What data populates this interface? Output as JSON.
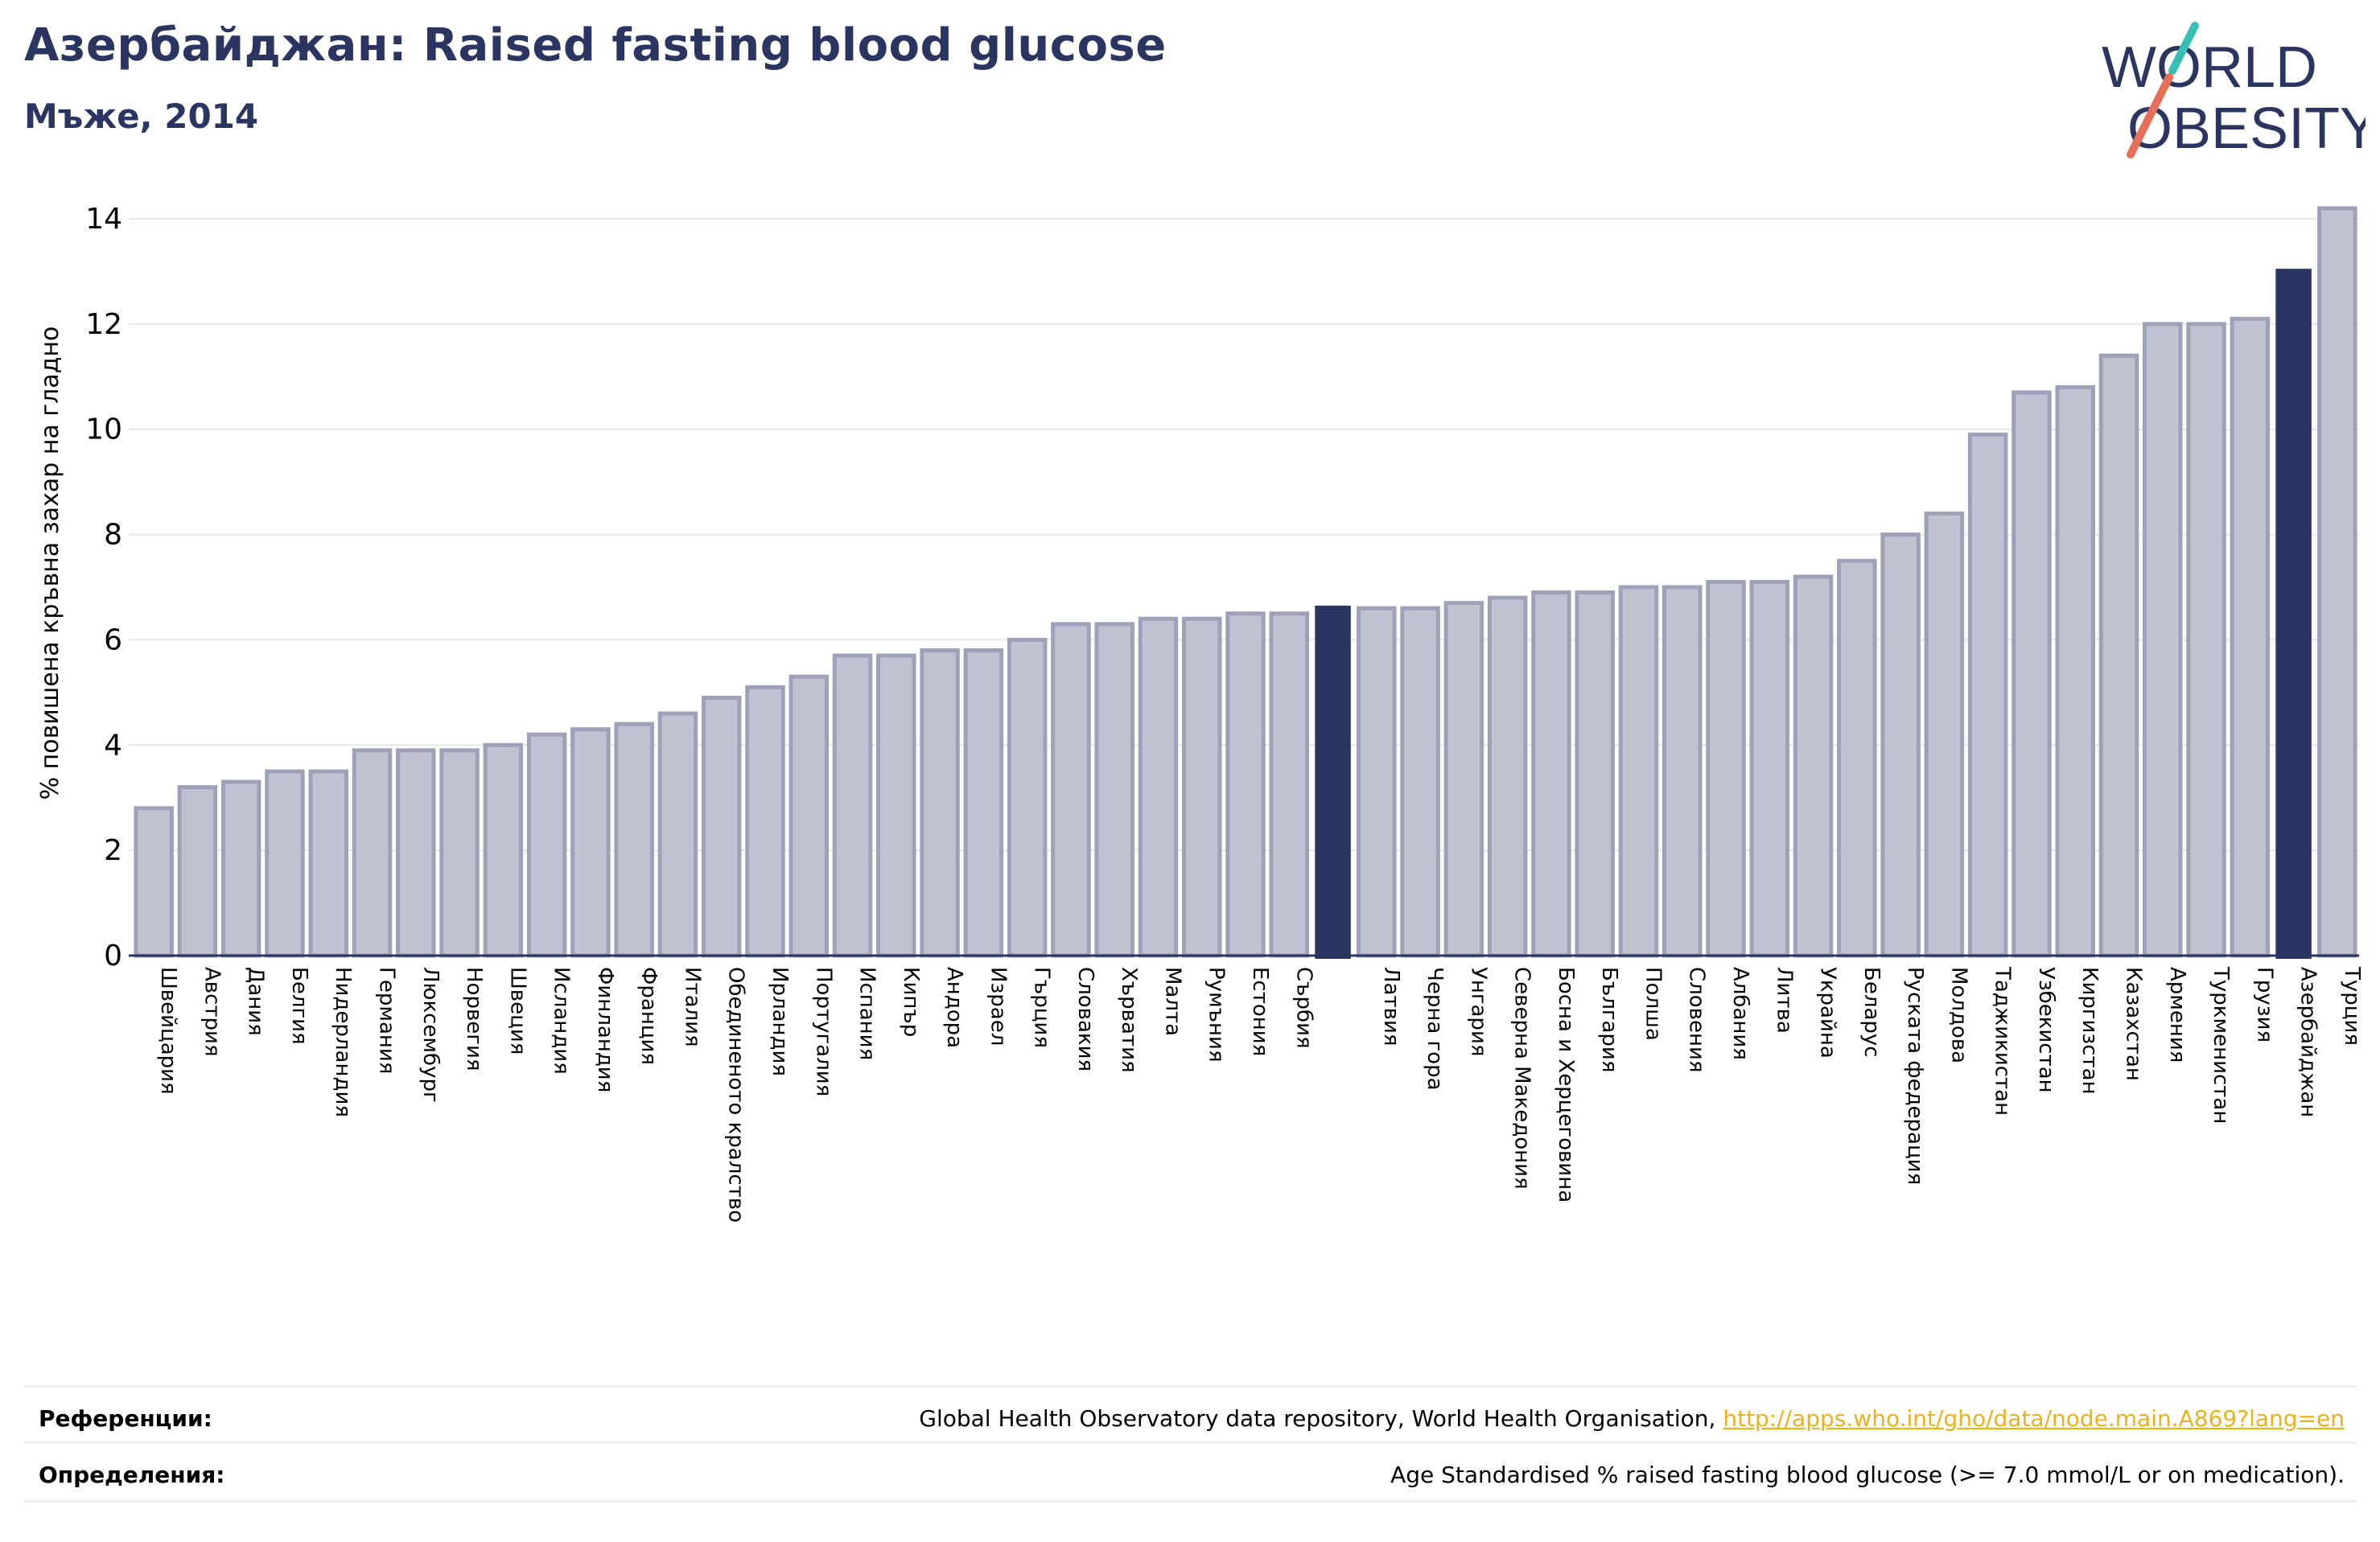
{
  "header": {
    "title": "Азербайджан: Raised fasting blood glucose",
    "subtitle": "Мъже, 2014"
  },
  "logo": {
    "line1": "WORLD",
    "line2": "OBESITY",
    "color": "#2a3562",
    "accent_teal": "#3bbfb5",
    "accent_coral": "#e8705a"
  },
  "colors": {
    "bar_fill": "#bfc2d1",
    "bar_stroke": "#9ea2b8",
    "highlight": "#2a3562",
    "grid": "#e6e6e6",
    "axis": "#2a3562"
  },
  "chart_data": {
    "type": "bar",
    "ylabel": "% повишена кръвна захар на гладно",
    "ylim": [
      0,
      14.5
    ],
    "yticks": [
      0,
      2,
      4,
      6,
      8,
      10,
      12,
      14
    ],
    "grid": true,
    "highlight_category": "Азербайджан",
    "categories": [
      "Швейцария",
      "Австрия",
      "Дания",
      "Белгия",
      "Нидерландия",
      "Германия",
      "Люксембург",
      "Норвегия",
      "Швеция",
      "Исландия",
      "Финландия",
      "Франция",
      "Италия",
      "Обединеното кралство",
      "Ирландия",
      "Португалия",
      "Испания",
      "Кипър",
      "Андора",
      "Израел",
      "Гърция",
      "Словакия",
      "Хърватия",
      "Малта",
      "Румъния",
      "Естония",
      "Сърбия",
      "",
      "Латвия",
      "Черна гора",
      "Унгария",
      "Северна Македония",
      "Босна и Херцеговина",
      "България",
      "Полша",
      "Словения",
      "Албания",
      "Литва",
      "Украйна",
      "Беларус",
      "Руската федерация",
      "Молдова",
      "Таджикистан",
      "Узбекистан",
      "Киргизстан",
      "Казахстан",
      "Армения",
      "Туркменистан",
      "Грузия",
      "Азербайджан",
      "Турция"
    ],
    "values": [
      2.8,
      3.2,
      3.3,
      3.5,
      3.5,
      3.9,
      3.9,
      3.9,
      4.0,
      4.2,
      4.3,
      4.4,
      4.6,
      4.9,
      5.1,
      5.3,
      5.7,
      5.7,
      5.8,
      5.8,
      6.0,
      6.3,
      6.3,
      6.4,
      6.4,
      6.5,
      6.5,
      6.65,
      6.6,
      6.6,
      6.7,
      6.8,
      6.9,
      6.9,
      7.0,
      7.0,
      7.1,
      7.1,
      7.2,
      7.5,
      8.0,
      8.4,
      9.9,
      10.7,
      10.8,
      11.4,
      12.0,
      12.0,
      12.1,
      13.05,
      14.2
    ],
    "highlight_indices": [
      27,
      49
    ]
  },
  "footer": {
    "references_label": "Референции:",
    "references_text": "Global Health Observatory data repository, World Health Organisation, ",
    "references_link": "http://apps.who.int/gho/data/node.main.A869?lang=en",
    "definitions_label": "Определения:",
    "definitions_text": "Age Standardised % raised fasting blood glucose (>= 7.0 mmol/L or on medication)."
  }
}
